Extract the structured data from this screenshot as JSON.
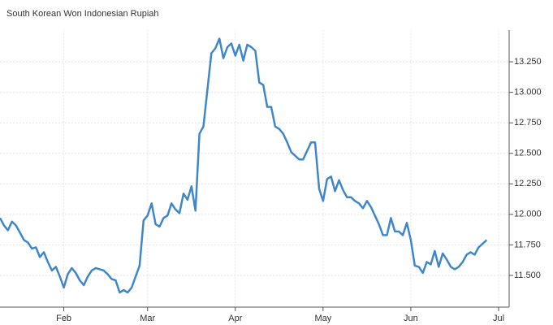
{
  "chart_data": {
    "type": "line",
    "title": "South Korean Won Indonesian Rupiah",
    "categories": [
      null,
      null,
      null,
      null,
      null,
      null,
      null,
      null,
      null,
      null,
      null,
      null,
      null,
      null,
      null,
      null,
      "Feb",
      null,
      null,
      null,
      null,
      null,
      null,
      null,
      null,
      null,
      null,
      null,
      null,
      null,
      null,
      null,
      null,
      null,
      null,
      null,
      null,
      "Mar",
      null,
      null,
      null,
      null,
      null,
      null,
      null,
      null,
      null,
      null,
      null,
      null,
      null,
      null,
      null,
      null,
      null,
      null,
      null,
      null,
      null,
      "Apr",
      null,
      null,
      null,
      null,
      null,
      null,
      null,
      null,
      null,
      null,
      null,
      null,
      null,
      null,
      null,
      null,
      null,
      null,
      null,
      null,
      null,
      "May",
      null,
      null,
      null,
      null,
      null,
      null,
      null,
      null,
      null,
      null,
      null,
      null,
      null,
      null,
      null,
      null,
      null,
      null,
      null,
      null,
      null,
      "Jun",
      null,
      null,
      null,
      null,
      null,
      null,
      null,
      null,
      null,
      null,
      null,
      null,
      null,
      null,
      null,
      null,
      null,
      null,
      null,
      null,
      null,
      "Jul"
    ],
    "series": [
      {
        "name": "South Korean Won Indonesian Rupiah",
        "color": "#3f87c8",
        "values": [
          11.97,
          11.91,
          11.87,
          11.94,
          11.91,
          11.85,
          11.79,
          11.77,
          11.72,
          11.73,
          11.65,
          11.69,
          11.61,
          11.54,
          11.57,
          11.49,
          11.4,
          11.51,
          11.56,
          11.52,
          11.46,
          11.42,
          11.49,
          11.54,
          11.56,
          11.55,
          11.54,
          11.51,
          11.47,
          11.46,
          11.36,
          11.38,
          11.36,
          11.4,
          11.49,
          11.58,
          11.95,
          11.99,
          12.09,
          11.92,
          11.9,
          11.97,
          11.99,
          12.09,
          12.04,
          12.01,
          12.17,
          12.12,
          12.23,
          12.03,
          12.66,
          12.72,
          13.02,
          13.32,
          13.36,
          13.44,
          13.28,
          13.37,
          13.4,
          13.3,
          13.39,
          13.26,
          13.39,
          13.37,
          13.34,
          13.08,
          13.06,
          12.88,
          12.88,
          12.72,
          12.7,
          12.66,
          12.59,
          12.51,
          12.48,
          12.45,
          12.45,
          12.52,
          12.59,
          12.59,
          12.21,
          12.11,
          12.29,
          12.31,
          12.19,
          12.28,
          12.2,
          12.14,
          12.14,
          12.11,
          12.09,
          12.05,
          12.11,
          12.06,
          11.99,
          11.92,
          11.83,
          11.83,
          11.97,
          11.86,
          11.86,
          11.83,
          11.93,
          11.79,
          11.58,
          11.57,
          11.52,
          11.61,
          11.59,
          11.7,
          11.57,
          11.68,
          11.63,
          11.57,
          11.55,
          11.57,
          11.61,
          11.67,
          11.69,
          11.67,
          11.73,
          11.76,
          11.79,
          null,
          null,
          null
        ]
      }
    ],
    "ylim": [
      11.24,
      13.51
    ],
    "yticks": [
      {
        "value": 11.5,
        "label": "11.500"
      },
      {
        "value": 11.75,
        "label": "11.750"
      },
      {
        "value": 12,
        "label": "12.000"
      },
      {
        "value": 12.25,
        "label": "12.250"
      },
      {
        "value": 12.5,
        "label": "12.500"
      },
      {
        "value": 12.75,
        "label": "12.750"
      },
      {
        "value": 13,
        "label": "13.000"
      },
      {
        "value": 13.25,
        "label": "13.250"
      }
    ],
    "grid": true
  }
}
